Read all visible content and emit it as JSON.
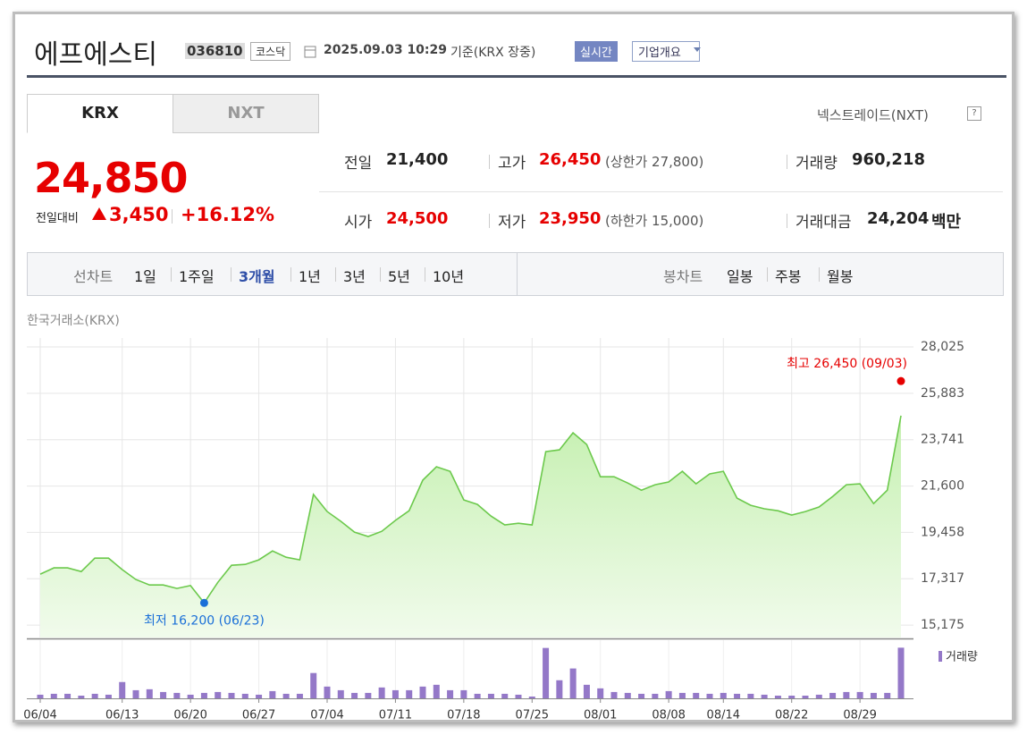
{
  "header": {
    "name": "에프에스티",
    "code": "036810",
    "market": "코스닥",
    "timestamp": "2025.09.03 10:29",
    "basis": "기준(KRX 장중)",
    "realtime": "실시간",
    "company_info": "기업개요"
  },
  "tabs": [
    "KRX",
    "NXT"
  ],
  "nxt_link": "넥스트레이드(NXT)",
  "price": {
    "current": "24,850",
    "change_label": "전일대비",
    "change": "3,450",
    "change_rate": "+16.12%",
    "color": "#e60000"
  },
  "quote_table": {
    "rows": [
      [
        {
          "label": "전일",
          "value": "21,400"
        },
        {
          "label": "고가",
          "value": "26,450",
          "note": "(상한가 27,800)",
          "color": "#e60000"
        },
        {
          "label": "거래량",
          "value": "960,218"
        }
      ],
      [
        {
          "label": "시가",
          "value": "24,500",
          "color": "#e60000"
        },
        {
          "label": "저가",
          "value": "23,950",
          "note": "(하한가 15,000)",
          "color": "#e60000"
        },
        {
          "label": "거래대금",
          "value": "24,204",
          "unit": "백만"
        }
      ]
    ]
  },
  "chart_menu": {
    "line_label": "선차트",
    "line_periods": [
      "1일",
      "1주일",
      "3개월",
      "1년",
      "3년",
      "5년",
      "10년"
    ],
    "selected_period": "3개월",
    "candle_label": "봉차트",
    "candle_periods": [
      "일봉",
      "주봉",
      "월봉"
    ]
  },
  "exchange": "한국거래소(KRX)",
  "chart_data": [
    {
      "type": "area",
      "color": "#6cc94c",
      "values": [
        17530,
        17820,
        17820,
        17650,
        18270,
        18270,
        17740,
        17280,
        17030,
        17030,
        16870,
        17000,
        16200,
        17150,
        17940,
        17980,
        18190,
        18600,
        18310,
        18190,
        21210,
        20420,
        19970,
        19470,
        19270,
        19510,
        20010,
        20460,
        21870,
        22490,
        22280,
        20960,
        20750,
        20210,
        19800,
        19880,
        19800,
        23190,
        23270,
        24060,
        23520,
        22030,
        22030,
        21740,
        21410,
        21660,
        21790,
        22280,
        21700,
        22160,
        22280,
        21040,
        20710,
        20550,
        20460,
        20260,
        20420,
        20630,
        21120,
        21660,
        21700,
        20790,
        21410,
        24850
      ],
      "ylim": [
        14600,
        28440
      ],
      "yticks": [
        {
          "value": 15175,
          "label": "15,175"
        },
        {
          "value": 17317,
          "label": "17,317"
        },
        {
          "value": 19458,
          "label": "19,458"
        },
        {
          "value": 21600,
          "label": "21,600"
        },
        {
          "value": 23741,
          "label": "23,741"
        },
        {
          "value": 25883,
          "label": "25,883"
        },
        {
          "value": 28025,
          "label": "28,025"
        }
      ],
      "grid": true,
      "annotations": [
        {
          "label": "최고 26,450 (09/03)",
          "value": 26450,
          "color": "#e60000"
        },
        {
          "label": "최저 16,200 (06/23)",
          "value": 16200,
          "color": "#1a6fd8"
        }
      ]
    },
    {
      "type": "bar",
      "categories": [
        "06/04",
        null,
        null,
        null,
        null,
        null,
        "06/13",
        null,
        null,
        null,
        null,
        "06/20",
        null,
        null,
        null,
        null,
        "06/27",
        null,
        null,
        null,
        null,
        "07/04",
        null,
        null,
        null,
        null,
        "07/11",
        null,
        null,
        null,
        null,
        "07/18",
        null,
        null,
        null,
        null,
        "07/25",
        null,
        null,
        null,
        null,
        "08/01",
        null,
        null,
        null,
        null,
        "08/08",
        null,
        null,
        null,
        "08/14",
        null,
        null,
        null,
        null,
        "08/22",
        null,
        null,
        null,
        null,
        "08/29",
        null,
        null,
        null
      ],
      "series": [
        {
          "name": "거래량",
          "color": "#9478c8",
          "values": [
            69000,
            86000,
            86000,
            51000,
            86000,
            69000,
            309000,
            154000,
            172000,
            120000,
            103000,
            69000,
            103000,
            120000,
            103000,
            86000,
            69000,
            137000,
            86000,
            86000,
            480000,
            223000,
            154000,
            103000,
            103000,
            206000,
            154000,
            154000,
            223000,
            257000,
            154000,
            154000,
            86000,
            86000,
            86000,
            69000,
            34000,
            955000,
            343000,
            566000,
            257000,
            189000,
            120000,
            103000,
            86000,
            86000,
            137000,
            103000,
            103000,
            86000,
            103000,
            86000,
            86000,
            69000,
            51000,
            51000,
            51000,
            69000,
            103000,
            120000,
            120000,
            103000,
            103000,
            960218
          ]
        }
      ],
      "ylim": [
        0,
        1000000
      ]
    }
  ]
}
